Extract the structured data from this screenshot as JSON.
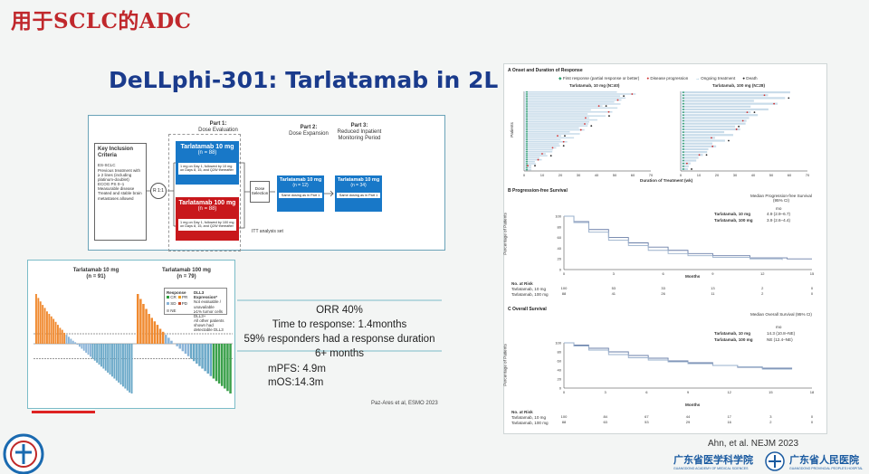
{
  "slide": {
    "title": "用于SCLC的ADC",
    "panel_title": "DeLLphi-301: Tarlatamab in 2L SCLC"
  },
  "design": {
    "inclusion_title": "Key Inclusion Criteria",
    "inclusion_items": [
      "ES-SCLC",
      "Previous treatment with ≥ 2 lines (including platinum-doublet)",
      "ECOG PS 0–1",
      "Measurable disease",
      "Treated and stable brain metastases allowed"
    ],
    "randomize_label": "R 1:1",
    "part1_title": "Part 1:",
    "part1_sub": "Dose Evaluation",
    "arm10_label": "Tarlatamab 10 mg",
    "arm10_n": "(n = 88)",
    "arm10_detail": "1 mg on Day 1, followed by 10 mg on Days 8, 15, and Q2W thereafter",
    "arm100_label": "Tarlatamab 100 mg",
    "arm100_n": "(n = 88)",
    "arm100_detail": "1 mg on Day 1, followed by 100 mg on Days 8, 15, and Q2W thereafter",
    "dose_selection": "Dose Selection",
    "part2_title": "Part 2:",
    "part2_sub": "Dose Expansion",
    "part2_arm": "Tarlatamab 10 mg",
    "part2_n": "(n = 12)",
    "part2_note": "Same dosing as in Part 1",
    "part3_title": "Part 3:",
    "part3_sub": "Reduced Inpatient Monitoring Period",
    "part3_arm": "Tarlatamab 10 mg",
    "part3_n": "(n = 34)",
    "part3_note": "Same dosing as in Part 1",
    "itt": "ITT analysis set"
  },
  "waterfall": {
    "left_title": "Tarlatamab 10 mg",
    "left_n": "(n = 91)",
    "right_title": "Tarlatamab 100 mg",
    "right_n": "(n = 79)",
    "legend_response": "Response",
    "legend_items": [
      "CR",
      "PR",
      "SD",
      "PD",
      "NE"
    ],
    "legend_dll3": "DLL3 Expression*",
    "legend_dll3_items": [
      "Not evaluable / unavailable",
      "≥1% tumor cells DLL3+",
      "All other patients shown had detectable DLL3"
    ],
    "bars_left": [
      100,
      92,
      85,
      78,
      72,
      65,
      60,
      55,
      50,
      44,
      38,
      32,
      28,
      22,
      18,
      14,
      10,
      6,
      3,
      -2,
      -6,
      -10,
      -14,
      -18,
      -22,
      -26,
      -30,
      -34,
      -38,
      -42,
      -46,
      -50,
      -54,
      -58,
      -62,
      -66,
      -70,
      -74,
      -78,
      -82,
      -86,
      -90,
      -94,
      -98,
      -100
    ],
    "bars_right": [
      100,
      90,
      80,
      70,
      60,
      52,
      45,
      38,
      30,
      24,
      18,
      12,
      6,
      0,
      -5,
      -10,
      -15,
      -20,
      -25,
      -30,
      -35,
      -40,
      -45,
      -50,
      -55,
      -60,
      -65,
      -70,
      -75,
      -80,
      -85,
      -90,
      -95,
      -100
    ]
  },
  "results": {
    "orr": "ORR 40%",
    "ttr": "Time to response: 1.4months",
    "duration": "59% responders had a response duration 6+ months",
    "mpfs": "mPFS: 4.9m",
    "mos": "mOS:14.3m",
    "citation": "Paz-Ares et al, ESMO 2023"
  },
  "figure": {
    "panelA_title": "A   Onset and Duration of Response",
    "panelA_legend": [
      "First response (partial response or better)",
      "Disease progression",
      "Ongoing treatment",
      "Death"
    ],
    "panelA_left": "Tarlatamab, 10 mg (N=40)",
    "panelA_right": "Tarlatamab, 100 mg (N=28)",
    "panelA_ylabel": "Patients",
    "panelA_xlabel": "Duration of Treatment (wk)",
    "panelA_ticks": [
      "0",
      "10",
      "20",
      "30",
      "40",
      "50",
      "60",
      "70"
    ],
    "panelB_title": "B   Progression-free Survival",
    "panelB_median_head": "Median Progression-free Survival (95% CI)",
    "panelB_mo": "mo",
    "panelB_s1": "Tarlatamab, 10 mg",
    "panelB_s1_val": "4.9 (2.9–6.7)",
    "panelB_s2": "Tarlatamab, 100 mg",
    "panelB_s2_val": "3.9 (2.6–4.4)",
    "panelB_ylabel": "Percentage of Patients",
    "panelB_xlabel": "Months",
    "panelB_yticks": [
      "100",
      "80",
      "60",
      "40",
      "20",
      "0"
    ],
    "panelB_xticks": [
      "0",
      "3",
      "6",
      "9",
      "12",
      "15"
    ],
    "panelB_risk_head": "No. at Risk",
    "panelB_risk1": [
      "100",
      "53",
      "33",
      "13",
      "2",
      "0"
    ],
    "panelB_risk2": [
      "88",
      "41",
      "26",
      "11",
      "2",
      "0"
    ],
    "panelC_title": "C   Overall Survival",
    "panelC_median_head": "Median Overall Survival (95% CI)",
    "panelC_mo": "mo",
    "panelC_s1": "Tarlatamab, 10 mg",
    "panelC_s1_val": "14.3 (10.8–NE)",
    "panelC_s2": "Tarlatamab, 100 mg",
    "panelC_s2_val": "NE (12.4–NE)",
    "panelC_ylabel": "Percentage of Patients",
    "panelC_xlabel": "Months",
    "panelC_yticks": [
      "100",
      "80",
      "60",
      "40",
      "20",
      "0"
    ],
    "panelC_xticks": [
      "0",
      "3",
      "6",
      "9",
      "12",
      "15",
      "18"
    ],
    "panelC_risk_head": "No. at Risk",
    "panelC_risk1": [
      "100",
      "84",
      "67",
      "44",
      "17",
      "3",
      "0"
    ],
    "panelC_risk2": [
      "88",
      "63",
      "53",
      "29",
      "16",
      "2",
      "0"
    ],
    "citation": "Ahn, et al. NEJM 2023"
  },
  "footer": {
    "inst1": "广东省医学科学院",
    "inst1_sub": "GUANGDONG ACADEMY OF MEDICAL SCIENCES",
    "inst2": "广东省人民医院",
    "inst2_sub": "GUANGDONG PROVINCIAL PEOPLE'S HOSPITAL"
  },
  "colors": {
    "title_red": "#c0282c",
    "panel_blue": "#1a3b8c",
    "arm_blue": "#1878c8",
    "arm_red": "#c8181c"
  }
}
